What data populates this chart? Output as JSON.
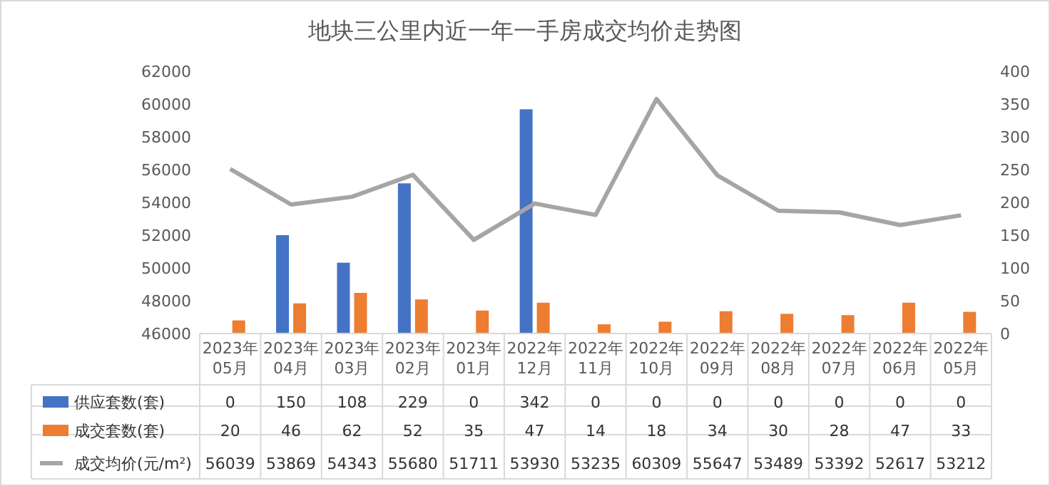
{
  "chart_data": {
    "type": "bar",
    "title": "地块三公里内近一年一手房成交均价走势图",
    "categories": [
      "2023年\n05月",
      "2023年\n04月",
      "2023年\n03月",
      "2023年\n02月",
      "2023年\n01月",
      "2022年\n12月",
      "2022年\n11月",
      "2022年\n10月",
      "2022年\n09月",
      "2022年\n08月",
      "2022年\n07月",
      "2022年\n06月",
      "2022年\n05月"
    ],
    "series": [
      {
        "name": "供应套数(套)",
        "axis": "y2",
        "color": "#4472c4",
        "values": [
          0,
          150,
          108,
          229,
          0,
          342,
          0,
          0,
          0,
          0,
          0,
          0,
          0
        ]
      },
      {
        "name": "成交套数(套)",
        "axis": "y2",
        "color": "#ed7d31",
        "values": [
          20,
          46,
          62,
          52,
          35,
          47,
          14,
          18,
          34,
          30,
          28,
          47,
          33
        ]
      },
      {
        "name": "成交均价(元/m²)",
        "type": "line",
        "color": "#a5a5a5",
        "values": [
          56039,
          53869,
          54343,
          55680,
          51711,
          53930,
          53235,
          60309,
          55647,
          53489,
          53392,
          52617,
          53212
        ]
      }
    ],
    "ylim": [
      46000,
      62000
    ],
    "yticks": [
      46000,
      48000,
      50000,
      52000,
      54000,
      56000,
      58000,
      60000,
      62000
    ],
    "y2lim": [
      0,
      400
    ],
    "y2ticks": [
      0,
      50,
      100,
      150,
      200,
      250,
      300,
      350,
      400
    ],
    "data_labels": true,
    "legend": "bottom",
    "grid": false
  }
}
